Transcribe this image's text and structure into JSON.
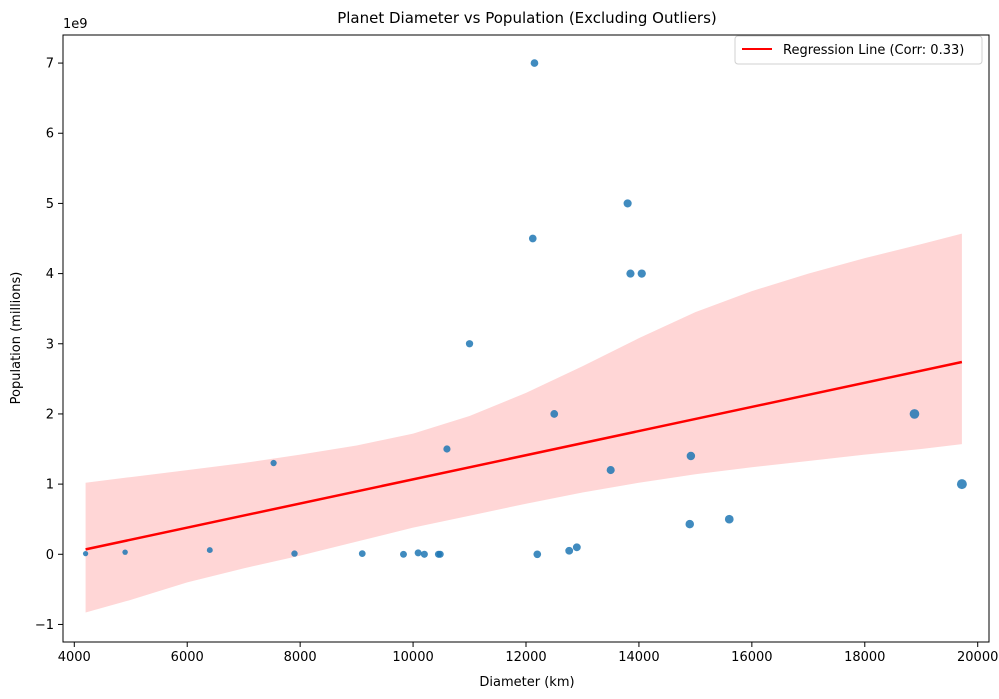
{
  "chart_data": {
    "type": "scatter",
    "title": "Planet Diameter vs Population (Excluding Outliers)",
    "xlabel": "Diameter (km)",
    "ylabel": "Population (millions)",
    "y_offset_label": "1e9",
    "xlim": [
      3800,
      20200
    ],
    "ylim": [
      -1.25,
      7.4
    ],
    "x_ticks": [
      4000,
      6000,
      8000,
      10000,
      12000,
      14000,
      16000,
      18000,
      20000
    ],
    "y_ticks": [
      -1,
      0,
      1,
      2,
      3,
      4,
      5,
      6,
      7
    ],
    "x_tick_labels": [
      "4000",
      "6000",
      "8000",
      "10000",
      "12000",
      "14000",
      "16000",
      "18000",
      "20000"
    ],
    "y_tick_labels": [
      "−1",
      "0",
      "1",
      "2",
      "3",
      "4",
      "5",
      "6",
      "7"
    ],
    "grid": false,
    "legend_position": "top-right",
    "colors": {
      "points": "#1f77b4",
      "regression": "#ff0000",
      "band": "#ffcccc"
    },
    "points": [
      {
        "x": 4200,
        "y": 0.01
      },
      {
        "x": 4900,
        "y": 0.03
      },
      {
        "x": 6400,
        "y": 0.06
      },
      {
        "x": 7530,
        "y": 1.3
      },
      {
        "x": 7900,
        "y": 0.01
      },
      {
        "x": 9100,
        "y": 0.01
      },
      {
        "x": 9830,
        "y": 0.0
      },
      {
        "x": 10090,
        "y": 0.02
      },
      {
        "x": 10200,
        "y": 0.0
      },
      {
        "x": 10450,
        "y": 0.0
      },
      {
        "x": 10480,
        "y": 0.0
      },
      {
        "x": 10600,
        "y": 1.5
      },
      {
        "x": 11000,
        "y": 3.0
      },
      {
        "x": 12120,
        "y": 4.5
      },
      {
        "x": 12150,
        "y": 7.0
      },
      {
        "x": 12200,
        "y": 0.0
      },
      {
        "x": 12500,
        "y": 2.0
      },
      {
        "x": 12765,
        "y": 0.05
      },
      {
        "x": 12900,
        "y": 0.1
      },
      {
        "x": 13500,
        "y": 1.2
      },
      {
        "x": 13800,
        "y": 5.0
      },
      {
        "x": 13850,
        "y": 4.0
      },
      {
        "x": 14050,
        "y": 4.0
      },
      {
        "x": 14900,
        "y": 0.43
      },
      {
        "x": 14920,
        "y": 1.4
      },
      {
        "x": 15600,
        "y": 0.5
      },
      {
        "x": 18880,
        "y": 2.0
      },
      {
        "x": 19720,
        "y": 1.0
      }
    ],
    "regression": {
      "label": "Regression Line (Corr: 0.33)",
      "x_start": 4200,
      "y_start": 0.07,
      "x_end": 19720,
      "y_end": 2.74
    },
    "confidence_band": {
      "upper": [
        [
          4200,
          1.02
        ],
        [
          5000,
          1.1
        ],
        [
          6000,
          1.2
        ],
        [
          7000,
          1.3
        ],
        [
          8000,
          1.42
        ],
        [
          9000,
          1.55
        ],
        [
          10000,
          1.72
        ],
        [
          11000,
          1.97
        ],
        [
          12000,
          2.3
        ],
        [
          13000,
          2.68
        ],
        [
          14000,
          3.08
        ],
        [
          15000,
          3.45
        ],
        [
          16000,
          3.75
        ],
        [
          17000,
          4.0
        ],
        [
          18000,
          4.22
        ],
        [
          19000,
          4.42
        ],
        [
          19720,
          4.57
        ]
      ],
      "lower": [
        [
          4200,
          -0.83
        ],
        [
          5000,
          -0.65
        ],
        [
          6000,
          -0.4
        ],
        [
          7000,
          -0.2
        ],
        [
          8000,
          -0.02
        ],
        [
          9000,
          0.18
        ],
        [
          10000,
          0.38
        ],
        [
          11000,
          0.55
        ],
        [
          12000,
          0.72
        ],
        [
          13000,
          0.88
        ],
        [
          14000,
          1.02
        ],
        [
          15000,
          1.14
        ],
        [
          16000,
          1.24
        ],
        [
          17000,
          1.33
        ],
        [
          18000,
          1.42
        ],
        [
          19000,
          1.5
        ],
        [
          19720,
          1.57
        ]
      ]
    }
  }
}
